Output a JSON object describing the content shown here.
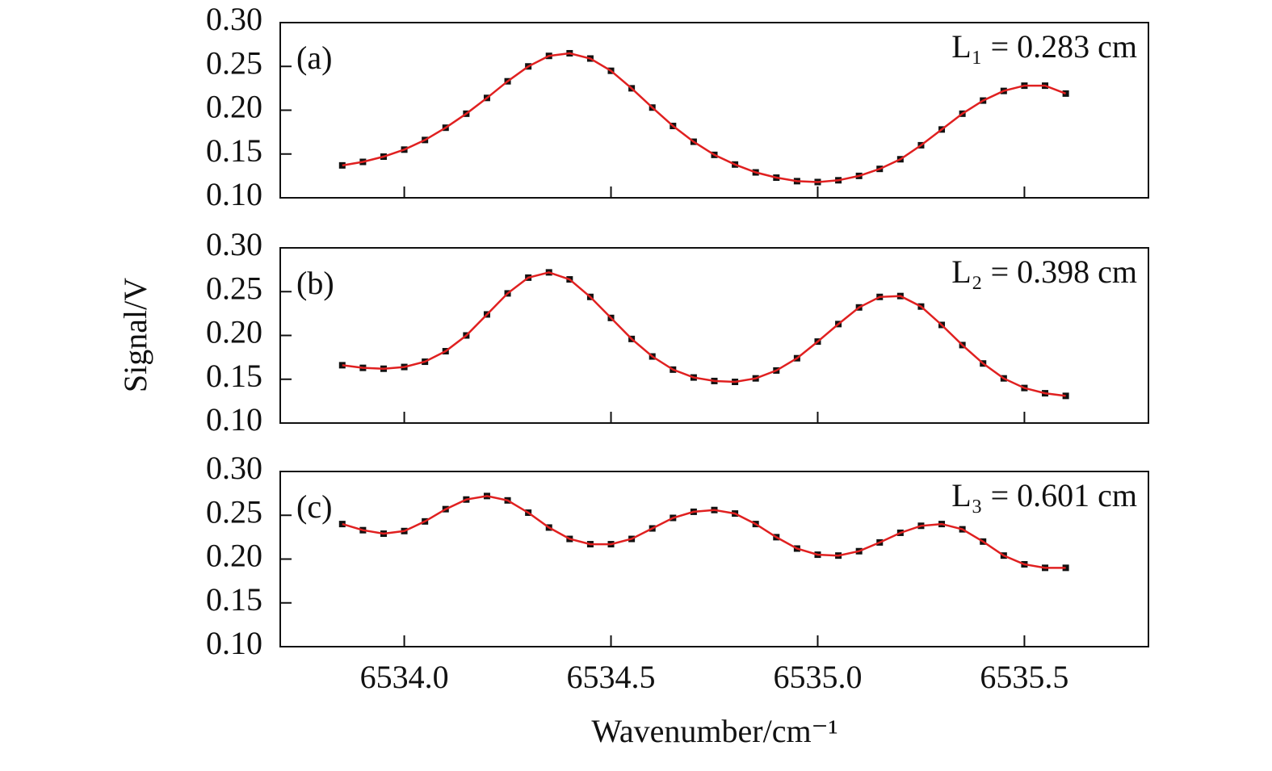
{
  "chart_data": [
    {
      "type": "line",
      "label": "(a)",
      "annotation": "L₁ = 0.283 cm",
      "x": [
        6533.85,
        6533.9,
        6533.95,
        6534,
        6534.05,
        6534.1,
        6534.15,
        6534.2,
        6534.25,
        6534.3,
        6534.35,
        6534.4,
        6534.45,
        6534.5,
        6534.55,
        6534.6,
        6534.65,
        6534.7,
        6534.75,
        6534.8,
        6534.85,
        6534.9,
        6534.95,
        6535,
        6535.05,
        6535.1,
        6535.15,
        6535.2,
        6535.25,
        6535.3,
        6535.35,
        6535.4,
        6535.45,
        6535.5,
        6535.55,
        6535.6
      ],
      "series": [
        {
          "style": "markers",
          "color": "#111111",
          "values": [
            0.137,
            0.141,
            0.147,
            0.155,
            0.166,
            0.18,
            0.196,
            0.214,
            0.233,
            0.25,
            0.262,
            0.265,
            0.259,
            0.245,
            0.225,
            0.203,
            0.182,
            0.164,
            0.149,
            0.138,
            0.129,
            0.123,
            0.119,
            0.118,
            0.12,
            0.125,
            0.133,
            0.144,
            0.16,
            0.178,
            0.196,
            0.211,
            0.222,
            0.228,
            0.228,
            0.219
          ]
        },
        {
          "style": "line",
          "color": "#e02020",
          "values": [
            0.137,
            0.141,
            0.147,
            0.155,
            0.166,
            0.18,
            0.196,
            0.214,
            0.233,
            0.25,
            0.262,
            0.265,
            0.259,
            0.245,
            0.225,
            0.203,
            0.182,
            0.164,
            0.149,
            0.138,
            0.129,
            0.123,
            0.119,
            0.118,
            0.12,
            0.125,
            0.133,
            0.144,
            0.16,
            0.178,
            0.196,
            0.211,
            0.222,
            0.228,
            0.228,
            0.219
          ]
        }
      ],
      "xlim": [
        6533.7,
        6535.8
      ],
      "xticks": [
        6534,
        6534.5,
        6535,
        6535.5
      ],
      "ylim": [
        0.1,
        0.3
      ],
      "yticks": [
        {
          "value": 0.1,
          "label": "0.10"
        },
        0.15,
        {
          "value": 0.2,
          "label": "0.20"
        },
        0.25,
        {
          "value": 0.3,
          "label": "0.30"
        }
      ]
    },
    {
      "type": "line",
      "label": "(b)",
      "annotation": "L₂ = 0.398 cm",
      "ylabel": "Signal/V",
      "x": [
        6533.85,
        6533.9,
        6533.95,
        6534,
        6534.05,
        6534.1,
        6534.15,
        6534.2,
        6534.25,
        6534.3,
        6534.35,
        6534.4,
        6534.45,
        6534.5,
        6534.55,
        6534.6,
        6534.65,
        6534.7,
        6534.75,
        6534.8,
        6534.85,
        6534.9,
        6534.95,
        6535,
        6535.05,
        6535.1,
        6535.15,
        6535.2,
        6535.25,
        6535.3,
        6535.35,
        6535.4,
        6535.45,
        6535.5,
        6535.55,
        6535.6
      ],
      "series": [
        {
          "style": "markers",
          "color": "#111111",
          "values": [
            0.166,
            0.163,
            0.162,
            0.164,
            0.17,
            0.182,
            0.2,
            0.224,
            0.248,
            0.266,
            0.272,
            0.264,
            0.244,
            0.22,
            0.196,
            0.176,
            0.161,
            0.152,
            0.148,
            0.147,
            0.151,
            0.16,
            0.174,
            0.193,
            0.213,
            0.232,
            0.244,
            0.245,
            0.233,
            0.212,
            0.189,
            0.168,
            0.151,
            0.14,
            0.134,
            0.131
          ]
        },
        {
          "style": "line",
          "color": "#e02020",
          "values": [
            0.166,
            0.163,
            0.162,
            0.164,
            0.17,
            0.182,
            0.2,
            0.224,
            0.248,
            0.266,
            0.272,
            0.264,
            0.244,
            0.22,
            0.196,
            0.176,
            0.161,
            0.152,
            0.148,
            0.147,
            0.151,
            0.16,
            0.174,
            0.193,
            0.213,
            0.232,
            0.244,
            0.245,
            0.233,
            0.212,
            0.189,
            0.168,
            0.151,
            0.14,
            0.134,
            0.131
          ]
        }
      ],
      "xlim": [
        6533.7,
        6535.8
      ],
      "xticks": [
        6534,
        6534.5,
        6535,
        6535.5
      ],
      "ylim": [
        0.1,
        0.3
      ],
      "yticks": [
        {
          "value": 0.1,
          "label": "0.10"
        },
        0.15,
        {
          "value": 0.2,
          "label": "0.20"
        },
        0.25,
        {
          "value": 0.3,
          "label": "0.30"
        }
      ]
    },
    {
      "type": "line",
      "label": "(c)",
      "annotation": "L₃ = 0.601 cm",
      "xlabel": "Wavenumber/cm⁻¹",
      "x": [
        6533.85,
        6533.9,
        6533.95,
        6534,
        6534.05,
        6534.1,
        6534.15,
        6534.2,
        6534.25,
        6534.3,
        6534.35,
        6534.4,
        6534.45,
        6534.5,
        6534.55,
        6534.6,
        6534.65,
        6534.7,
        6534.75,
        6534.8,
        6534.85,
        6534.9,
        6534.95,
        6535,
        6535.05,
        6535.1,
        6535.15,
        6535.2,
        6535.25,
        6535.3,
        6535.35,
        6535.4,
        6535.45,
        6535.5,
        6535.55,
        6535.6
      ],
      "series": [
        {
          "style": "markers",
          "color": "#111111",
          "values": [
            0.24,
            0.233,
            0.229,
            0.232,
            0.243,
            0.257,
            0.268,
            0.272,
            0.267,
            0.253,
            0.236,
            0.223,
            0.217,
            0.217,
            0.223,
            0.235,
            0.247,
            0.254,
            0.256,
            0.252,
            0.24,
            0.225,
            0.212,
            0.205,
            0.204,
            0.209,
            0.219,
            0.23,
            0.238,
            0.24,
            0.234,
            0.22,
            0.204,
            0.194,
            0.19,
            0.19
          ]
        },
        {
          "style": "line",
          "color": "#e02020",
          "values": [
            0.24,
            0.233,
            0.229,
            0.232,
            0.243,
            0.257,
            0.268,
            0.272,
            0.267,
            0.253,
            0.236,
            0.223,
            0.217,
            0.217,
            0.223,
            0.235,
            0.247,
            0.254,
            0.256,
            0.252,
            0.24,
            0.225,
            0.212,
            0.205,
            0.204,
            0.209,
            0.219,
            0.23,
            0.238,
            0.24,
            0.234,
            0.22,
            0.204,
            0.194,
            0.19,
            0.19
          ]
        }
      ],
      "xlim": [
        6533.7,
        6535.8
      ],
      "xticks": [
        {
          "value": 6534,
          "label": "6534.0"
        },
        {
          "value": 6534.5,
          "label": "6534.5"
        },
        {
          "value": 6535,
          "label": "6535.0"
        },
        {
          "value": 6535.5,
          "label": "6535.5"
        }
      ],
      "ylim": [
        0.1,
        0.3
      ],
      "yticks": [
        {
          "value": 0.1,
          "label": "0.10"
        },
        0.15,
        {
          "value": 0.2,
          "label": "0.20"
        },
        0.25,
        {
          "value": 0.3,
          "label": "0.30"
        }
      ]
    }
  ]
}
